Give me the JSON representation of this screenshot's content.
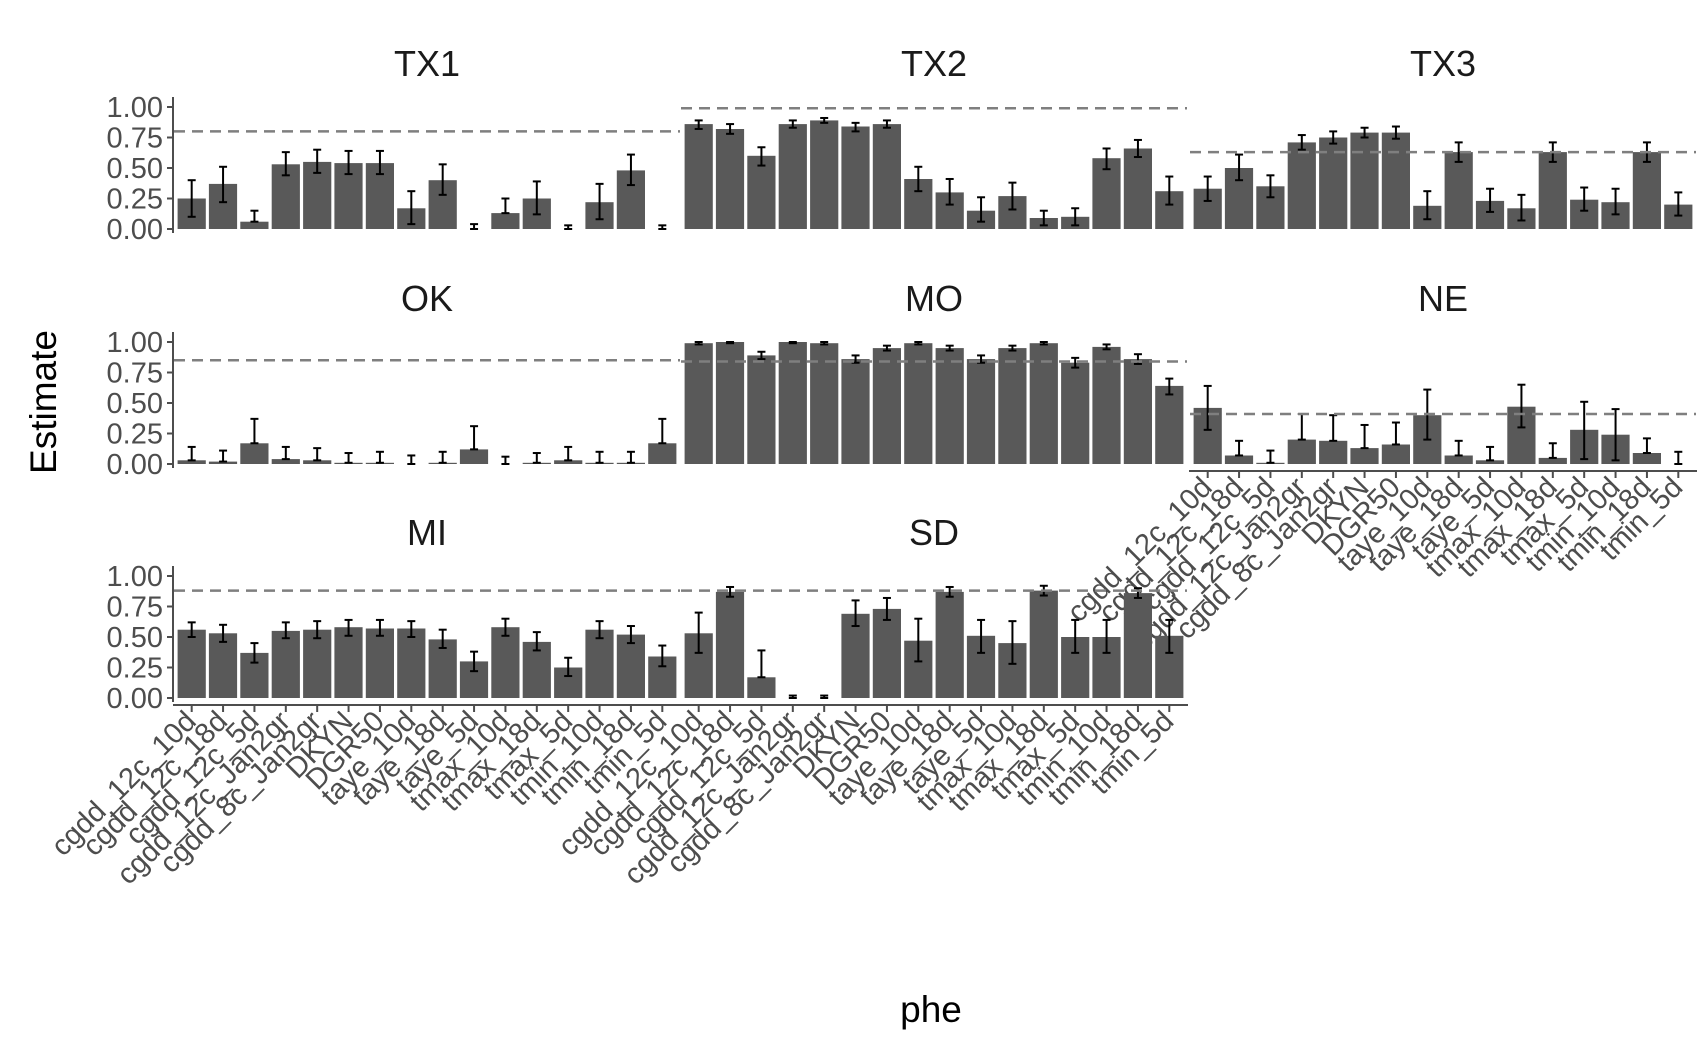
{
  "chart_data": {
    "type": "bar",
    "xlabel": "phe",
    "ylabel": "Estimate",
    "ylim": [
      0,
      1
    ],
    "y_ticks": [
      "0.00",
      "0.25",
      "0.50",
      "0.75",
      "1.00"
    ],
    "grid": false,
    "legend": "none",
    "categories": [
      "cgdd_12c_10d",
      "cgdd_12c_18d",
      "cgdd_12c_5d",
      "cgdd_12c_Jan2gr",
      "cgdd_8c_Jan2gr",
      "DKYN",
      "DGR50",
      "taye_10d",
      "taye_18d",
      "taye_5d",
      "tmax_10d",
      "tmax_18d",
      "tmax_5d",
      "tmin_10d",
      "tmin_18d",
      "tmin_5d"
    ],
    "colors": {
      "bar": "#595959",
      "errorbar": "#000000",
      "reference_line": "#7f7f7f",
      "axis": "#4d4d4d"
    },
    "panels": [
      {
        "title": "TX1",
        "reference": 0.8,
        "show_x_axis": false,
        "values": [
          0.25,
          0.37,
          0.06,
          0.53,
          0.55,
          0.54,
          0.54,
          0.17,
          0.4,
          0.0,
          0.13,
          0.25,
          0.0,
          0.22,
          0.48,
          0.0
        ],
        "lower": [
          0.1,
          0.22,
          0.06,
          0.44,
          0.46,
          0.45,
          0.45,
          0.04,
          0.28,
          0.0,
          0.13,
          0.12,
          0.0,
          0.08,
          0.36,
          0.0
        ],
        "upper": [
          0.4,
          0.51,
          0.15,
          0.63,
          0.65,
          0.64,
          0.64,
          0.31,
          0.53,
          0.04,
          0.25,
          0.39,
          0.03,
          0.37,
          0.61,
          0.03
        ]
      },
      {
        "title": "TX2",
        "reference": 0.99,
        "show_x_axis": false,
        "values": [
          0.86,
          0.82,
          0.6,
          0.86,
          0.89,
          0.84,
          0.86,
          0.41,
          0.3,
          0.15,
          0.27,
          0.09,
          0.1,
          0.58,
          0.66,
          0.31
        ],
        "lower": [
          0.82,
          0.78,
          0.52,
          0.83,
          0.87,
          0.8,
          0.83,
          0.31,
          0.2,
          0.06,
          0.16,
          0.03,
          0.03,
          0.49,
          0.59,
          0.2
        ],
        "upper": [
          0.89,
          0.86,
          0.67,
          0.89,
          0.91,
          0.87,
          0.89,
          0.51,
          0.41,
          0.26,
          0.38,
          0.15,
          0.17,
          0.66,
          0.73,
          0.43
        ]
      },
      {
        "title": "TX3",
        "reference": 0.63,
        "show_x_axis": false,
        "values": [
          0.33,
          0.5,
          0.35,
          0.71,
          0.75,
          0.79,
          0.79,
          0.19,
          0.63,
          0.23,
          0.17,
          0.63,
          0.24,
          0.22,
          0.63,
          0.2
        ],
        "lower": [
          0.23,
          0.4,
          0.26,
          0.65,
          0.7,
          0.75,
          0.74,
          0.08,
          0.55,
          0.14,
          0.07,
          0.55,
          0.15,
          0.12,
          0.55,
          0.11
        ],
        "upper": [
          0.43,
          0.61,
          0.44,
          0.77,
          0.8,
          0.83,
          0.84,
          0.31,
          0.71,
          0.33,
          0.28,
          0.71,
          0.34,
          0.33,
          0.71,
          0.3
        ]
      },
      {
        "title": "OK",
        "reference": 0.85,
        "show_x_axis": false,
        "values": [
          0.03,
          0.02,
          0.17,
          0.04,
          0.03,
          0.01,
          0.01,
          0.0,
          0.01,
          0.12,
          0.0,
          0.01,
          0.03,
          0.01,
          0.01,
          0.17
        ],
        "lower": [
          0.03,
          0.02,
          0.17,
          0.04,
          0.03,
          0.01,
          0.01,
          0.0,
          0.01,
          0.12,
          0.0,
          0.01,
          0.03,
          0.01,
          0.01,
          0.17
        ],
        "upper": [
          0.14,
          0.11,
          0.37,
          0.14,
          0.13,
          0.09,
          0.1,
          0.07,
          0.1,
          0.31,
          0.06,
          0.09,
          0.14,
          0.1,
          0.1,
          0.37
        ]
      },
      {
        "title": "MO",
        "reference": 0.84,
        "show_x_axis": false,
        "values": [
          0.99,
          1.0,
          0.89,
          1.0,
          0.99,
          0.86,
          0.95,
          0.99,
          0.95,
          0.86,
          0.95,
          0.99,
          0.83,
          0.96,
          0.86,
          0.64
        ],
        "lower": [
          0.98,
          0.99,
          0.86,
          0.99,
          0.98,
          0.83,
          0.93,
          0.98,
          0.93,
          0.83,
          0.93,
          0.98,
          0.79,
          0.94,
          0.82,
          0.57
        ],
        "upper": [
          1.0,
          1.0,
          0.92,
          1.0,
          1.0,
          0.89,
          0.97,
          1.0,
          0.97,
          0.89,
          0.97,
          1.0,
          0.87,
          0.98,
          0.9,
          0.7
        ]
      },
      {
        "title": "NE",
        "reference": 0.41,
        "show_x_axis": true,
        "values": [
          0.46,
          0.07,
          0.01,
          0.2,
          0.19,
          0.13,
          0.16,
          0.4,
          0.07,
          0.03,
          0.47,
          0.05,
          0.28,
          0.24,
          0.09,
          0.0
        ],
        "lower": [
          0.28,
          0.07,
          0.01,
          0.2,
          0.19,
          0.13,
          0.16,
          0.2,
          0.07,
          0.03,
          0.3,
          0.05,
          0.04,
          0.03,
          0.09,
          0.0
        ],
        "upper": [
          0.64,
          0.19,
          0.11,
          0.41,
          0.4,
          0.32,
          0.34,
          0.61,
          0.19,
          0.14,
          0.65,
          0.17,
          0.51,
          0.45,
          0.21,
          0.1
        ]
      },
      {
        "title": "MI",
        "reference": 0.88,
        "show_x_axis": true,
        "values": [
          0.56,
          0.53,
          0.37,
          0.55,
          0.56,
          0.58,
          0.57,
          0.57,
          0.48,
          0.3,
          0.58,
          0.46,
          0.25,
          0.56,
          0.52,
          0.34
        ],
        "lower": [
          0.5,
          0.46,
          0.29,
          0.49,
          0.49,
          0.51,
          0.51,
          0.5,
          0.41,
          0.22,
          0.51,
          0.39,
          0.18,
          0.49,
          0.45,
          0.26
        ],
        "upper": [
          0.62,
          0.6,
          0.45,
          0.62,
          0.63,
          0.64,
          0.64,
          0.63,
          0.56,
          0.38,
          0.65,
          0.54,
          0.33,
          0.63,
          0.59,
          0.43
        ]
      },
      {
        "title": "SD",
        "reference": 0.88,
        "show_x_axis": true,
        "values": [
          0.53,
          0.87,
          0.17,
          0.0,
          0.0,
          0.69,
          0.73,
          0.47,
          0.87,
          0.51,
          0.45,
          0.88,
          0.5,
          0.5,
          0.86,
          0.51
        ],
        "lower": [
          0.37,
          0.83,
          0.17,
          0.0,
          0.0,
          0.59,
          0.64,
          0.3,
          0.83,
          0.37,
          0.28,
          0.84,
          0.37,
          0.37,
          0.82,
          0.37
        ],
        "upper": [
          0.7,
          0.91,
          0.39,
          0.02,
          0.02,
          0.8,
          0.82,
          0.65,
          0.91,
          0.64,
          0.63,
          0.92,
          0.64,
          0.64,
          0.9,
          0.64
        ]
      }
    ]
  }
}
